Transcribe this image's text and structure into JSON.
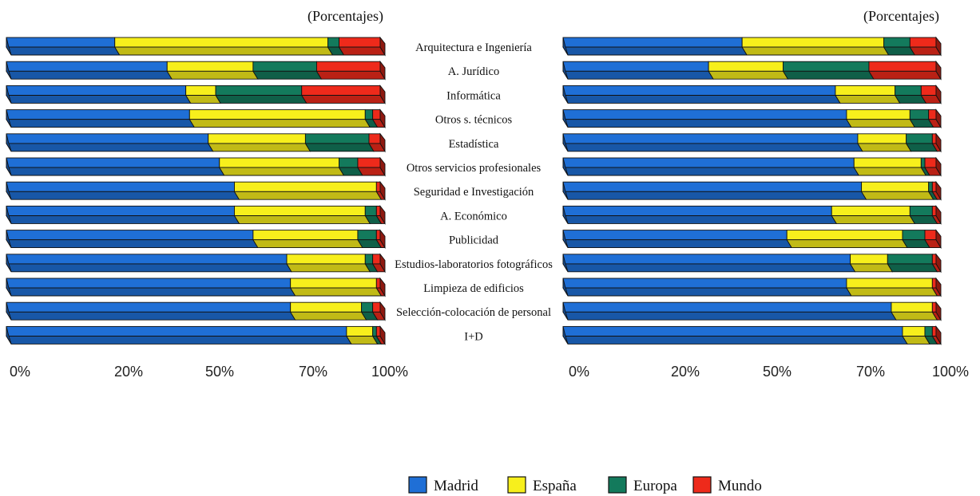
{
  "unit_label": "(Porcentajes)",
  "categories": [
    "Arquitectura e Ingeniería",
    "A. Jurídico",
    "Informática",
    "Otros s. técnicos",
    "Estadística",
    "Otros servicios profesionales",
    "Seguridad e Investigación",
    "A. Económico",
    "Publicidad",
    "Estudios-laboratorios fotográficos",
    "Limpieza de edificios",
    "Selección-colocación de personal",
    "I+D"
  ],
  "x_ticks": [
    "0%",
    "20%",
    "50%",
    "70%",
    "100%"
  ],
  "legend": [
    {
      "name": "Madrid",
      "color": "#1f6fd6"
    },
    {
      "name": "España",
      "color": "#f7ef1c"
    },
    {
      "name": "Europa",
      "color": "#137a5c"
    },
    {
      "name": "Mundo",
      "color": "#ee2a1b"
    }
  ],
  "chart_data": [
    {
      "type": "bar",
      "orientation": "horizontal",
      "stacked": true,
      "title": "(Porcentajes)",
      "xlim": [
        0,
        100
      ],
      "series": [
        {
          "name": "Madrid",
          "color": "#1f6fd6",
          "values": [
            29,
            43,
            48,
            49,
            54,
            57,
            61,
            61,
            66,
            75,
            76,
            76,
            91
          ]
        },
        {
          "name": "España",
          "color": "#f7ef1c",
          "values": [
            57,
            23,
            8,
            47,
            26,
            32,
            38,
            35,
            28,
            21,
            23,
            19,
            7
          ]
        },
        {
          "name": "Europa",
          "color": "#137a5c",
          "values": [
            3,
            17,
            23,
            2,
            17,
            5,
            0,
            3,
            5,
            2,
            0,
            3,
            1
          ]
        },
        {
          "name": "Mundo",
          "color": "#ee2a1b",
          "values": [
            11,
            17,
            21,
            2,
            3,
            6,
            1,
            1,
            1,
            2,
            1,
            2,
            1
          ]
        }
      ]
    },
    {
      "type": "bar",
      "orientation": "horizontal",
      "stacked": true,
      "title": "(Porcentajes)",
      "xlim": [
        0,
        100
      ],
      "series": [
        {
          "name": "Madrid",
          "color": "#1f6fd6",
          "values": [
            48,
            39,
            73,
            76,
            79,
            78,
            80,
            72,
            60,
            77,
            76,
            88,
            91
          ]
        },
        {
          "name": "España",
          "color": "#f7ef1c",
          "values": [
            38,
            20,
            16,
            17,
            13,
            18,
            18,
            21,
            31,
            10,
            23,
            11,
            6
          ]
        },
        {
          "name": "Europa",
          "color": "#137a5c",
          "values": [
            7,
            23,
            7,
            5,
            7,
            1,
            1,
            6,
            6,
            12,
            0,
            0,
            2
          ]
        },
        {
          "name": "Mundo",
          "color": "#ee2a1b",
          "values": [
            7,
            18,
            4,
            2,
            1,
            3,
            1,
            1,
            3,
            1,
            1,
            1,
            1
          ]
        }
      ]
    }
  ]
}
